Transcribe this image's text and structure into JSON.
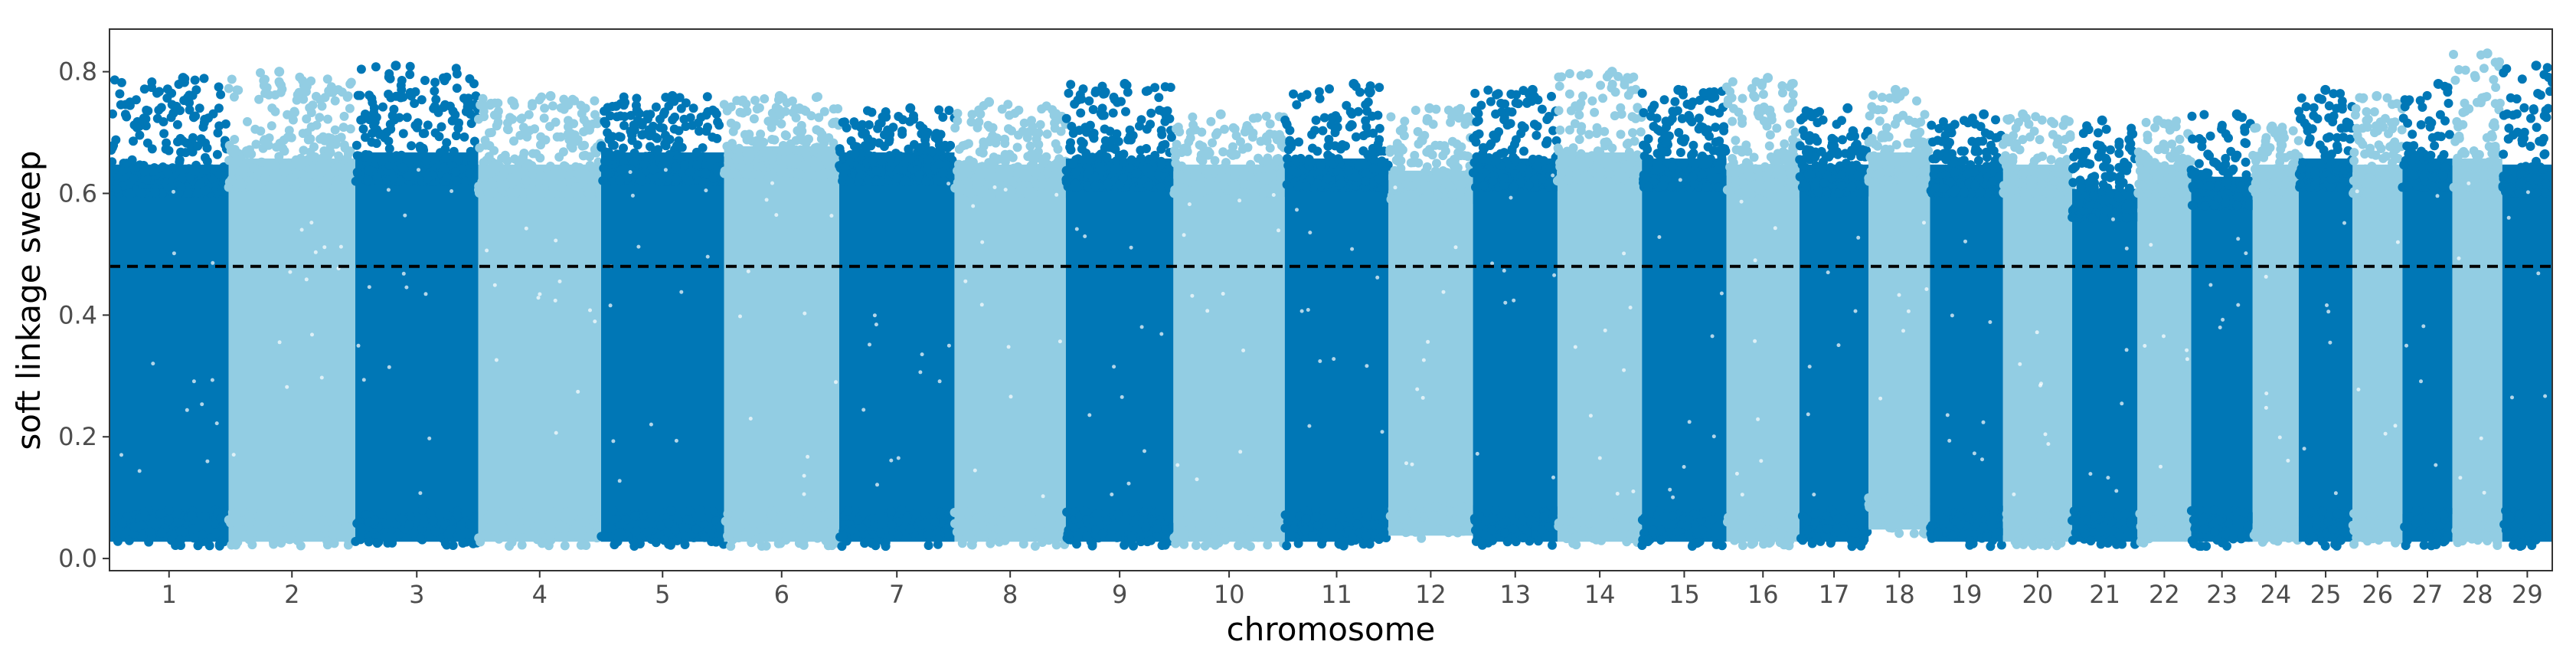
{
  "chart_data": {
    "type": "scatter",
    "subtype": "manhattan",
    "title": "",
    "xlabel": "chromosome",
    "ylabel": "soft linkage sweep",
    "ylim": [
      -0.02,
      0.87
    ],
    "yticks": [
      0.0,
      0.2,
      0.4,
      0.6,
      0.8
    ],
    "ytick_labels": [
      "0.0",
      "0.2",
      "0.4",
      "0.6",
      "0.8"
    ],
    "threshold": 0.48,
    "threshold_style": "dashed",
    "grid": false,
    "legend": "none",
    "colors": {
      "odd": "#0077b6",
      "even": "#92cde3",
      "threshold": "#000000",
      "frame": "#333333"
    },
    "chromosomes": [
      {
        "label": "1",
        "start": 0,
        "end": 155,
        "min": 0.02,
        "base_max": 0.66,
        "peak": 0.79
      },
      {
        "label": "2",
        "start": 155,
        "end": 320,
        "min": 0.02,
        "base_max": 0.67,
        "peak": 0.8
      },
      {
        "label": "3",
        "start": 320,
        "end": 480,
        "min": 0.02,
        "base_max": 0.68,
        "peak": 0.81
      },
      {
        "label": "4",
        "start": 480,
        "end": 640,
        "min": 0.02,
        "base_max": 0.66,
        "peak": 0.76
      },
      {
        "label": "5",
        "start": 640,
        "end": 800,
        "min": 0.02,
        "base_max": 0.68,
        "peak": 0.76
      },
      {
        "label": "6",
        "start": 800,
        "end": 950,
        "min": 0.02,
        "base_max": 0.69,
        "peak": 0.76
      },
      {
        "label": "7",
        "start": 950,
        "end": 1100,
        "min": 0.02,
        "base_max": 0.68,
        "peak": 0.74
      },
      {
        "label": "8",
        "start": 1100,
        "end": 1245,
        "min": 0.02,
        "base_max": 0.66,
        "peak": 0.75
      },
      {
        "label": "9",
        "start": 1245,
        "end": 1385,
        "min": 0.02,
        "base_max": 0.67,
        "peak": 0.78
      },
      {
        "label": "10",
        "start": 1385,
        "end": 1530,
        "min": 0.02,
        "base_max": 0.66,
        "peak": 0.73
      },
      {
        "label": "11",
        "start": 1530,
        "end": 1665,
        "min": 0.02,
        "base_max": 0.67,
        "peak": 0.78
      },
      {
        "label": "12",
        "start": 1665,
        "end": 1775,
        "min": 0.03,
        "base_max": 0.65,
        "peak": 0.74
      },
      {
        "label": "13",
        "start": 1775,
        "end": 1885,
        "min": 0.02,
        "base_max": 0.67,
        "peak": 0.77
      },
      {
        "label": "14",
        "start": 1885,
        "end": 1995,
        "min": 0.02,
        "base_max": 0.68,
        "peak": 0.8
      },
      {
        "label": "15",
        "start": 1995,
        "end": 2105,
        "min": 0.02,
        "base_max": 0.67,
        "peak": 0.77
      },
      {
        "label": "16",
        "start": 2105,
        "end": 2200,
        "min": 0.02,
        "base_max": 0.66,
        "peak": 0.79
      },
      {
        "label": "17",
        "start": 2200,
        "end": 2290,
        "min": 0.02,
        "base_max": 0.66,
        "peak": 0.74
      },
      {
        "label": "18",
        "start": 2290,
        "end": 2370,
        "min": 0.04,
        "base_max": 0.68,
        "peak": 0.77
      },
      {
        "label": "19",
        "start": 2370,
        "end": 2465,
        "min": 0.02,
        "base_max": 0.66,
        "peak": 0.73
      },
      {
        "label": "20",
        "start": 2465,
        "end": 2555,
        "min": 0.02,
        "base_max": 0.66,
        "peak": 0.73
      },
      {
        "label": "21",
        "start": 2555,
        "end": 2640,
        "min": 0.02,
        "base_max": 0.62,
        "peak": 0.72
      },
      {
        "label": "22",
        "start": 2640,
        "end": 2710,
        "min": 0.02,
        "base_max": 0.66,
        "peak": 0.72
      },
      {
        "label": "23",
        "start": 2710,
        "end": 2790,
        "min": 0.02,
        "base_max": 0.64,
        "peak": 0.73
      },
      {
        "label": "24",
        "start": 2790,
        "end": 2850,
        "min": 0.02,
        "base_max": 0.66,
        "peak": 0.71
      },
      {
        "label": "25",
        "start": 2850,
        "end": 2920,
        "min": 0.02,
        "base_max": 0.67,
        "peak": 0.77
      },
      {
        "label": "26",
        "start": 2920,
        "end": 2985,
        "min": 0.02,
        "base_max": 0.66,
        "peak": 0.76
      },
      {
        "label": "27",
        "start": 2985,
        "end": 3050,
        "min": 0.02,
        "base_max": 0.67,
        "peak": 0.78
      },
      {
        "label": "28",
        "start": 3050,
        "end": 3115,
        "min": 0.02,
        "base_max": 0.67,
        "peak": 0.83
      },
      {
        "label": "29",
        "start": 3115,
        "end": 3180,
        "min": 0.02,
        "base_max": 0.66,
        "peak": 0.81
      }
    ]
  }
}
